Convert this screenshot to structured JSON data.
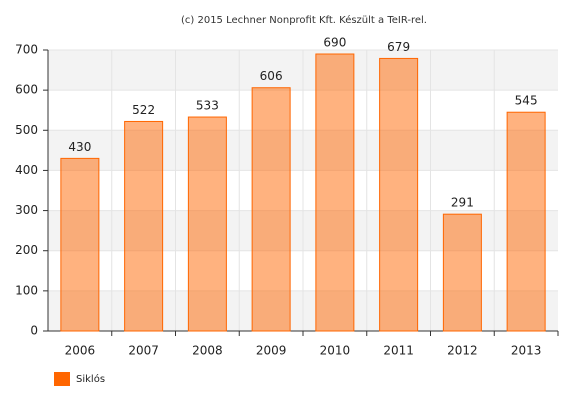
{
  "chart_data": {
    "type": "bar",
    "title": "(c) 2015 Lechner Nonprofit Kft. Készült a TeIR-rel.",
    "categories": [
      "2006",
      "2007",
      "2008",
      "2009",
      "2010",
      "2011",
      "2012",
      "2013"
    ],
    "series": [
      {
        "name": "Siklós",
        "color": "#ff6600",
        "values": [
          430,
          522,
          533,
          606,
          690,
          679,
          291,
          545
        ]
      }
    ],
    "ylim": [
      0,
      700
    ],
    "yticks": [
      0,
      100,
      200,
      300,
      400,
      500,
      600,
      700
    ],
    "grid": true,
    "legend": "bottom-left"
  }
}
